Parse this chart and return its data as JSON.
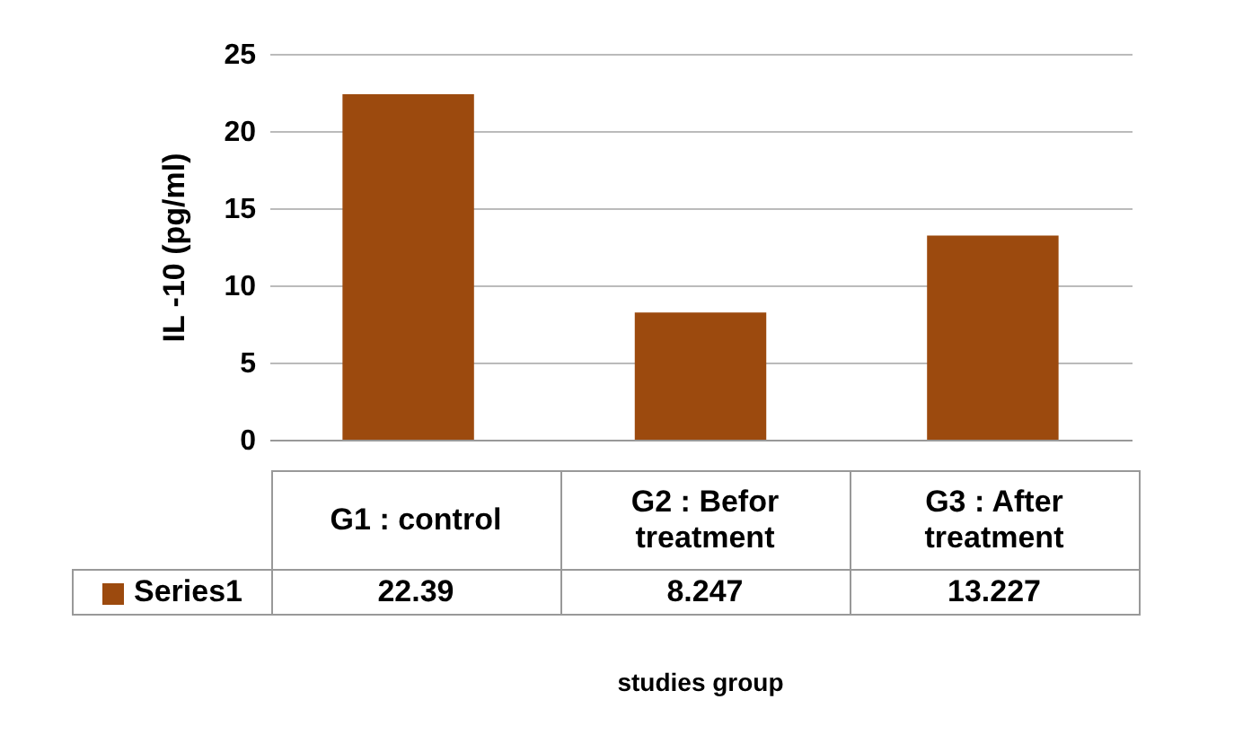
{
  "chart_data": {
    "type": "bar",
    "xlabel": "studies  group",
    "ylabel": "IL -10 (pg/ml)",
    "categories": [
      "G1 : control",
      "G2 : Befor treatment",
      "G3 : After treatment"
    ],
    "series": [
      {
        "name": "Series1",
        "color": "#9c4a0e",
        "values": [
          22.39,
          8.247,
          13.227
        ]
      }
    ],
    "ylim": [
      0,
      25
    ],
    "yticks": [
      0,
      5,
      10,
      15,
      20,
      25
    ],
    "grid": "y",
    "data_labels": true,
    "legend": "bottom"
  }
}
